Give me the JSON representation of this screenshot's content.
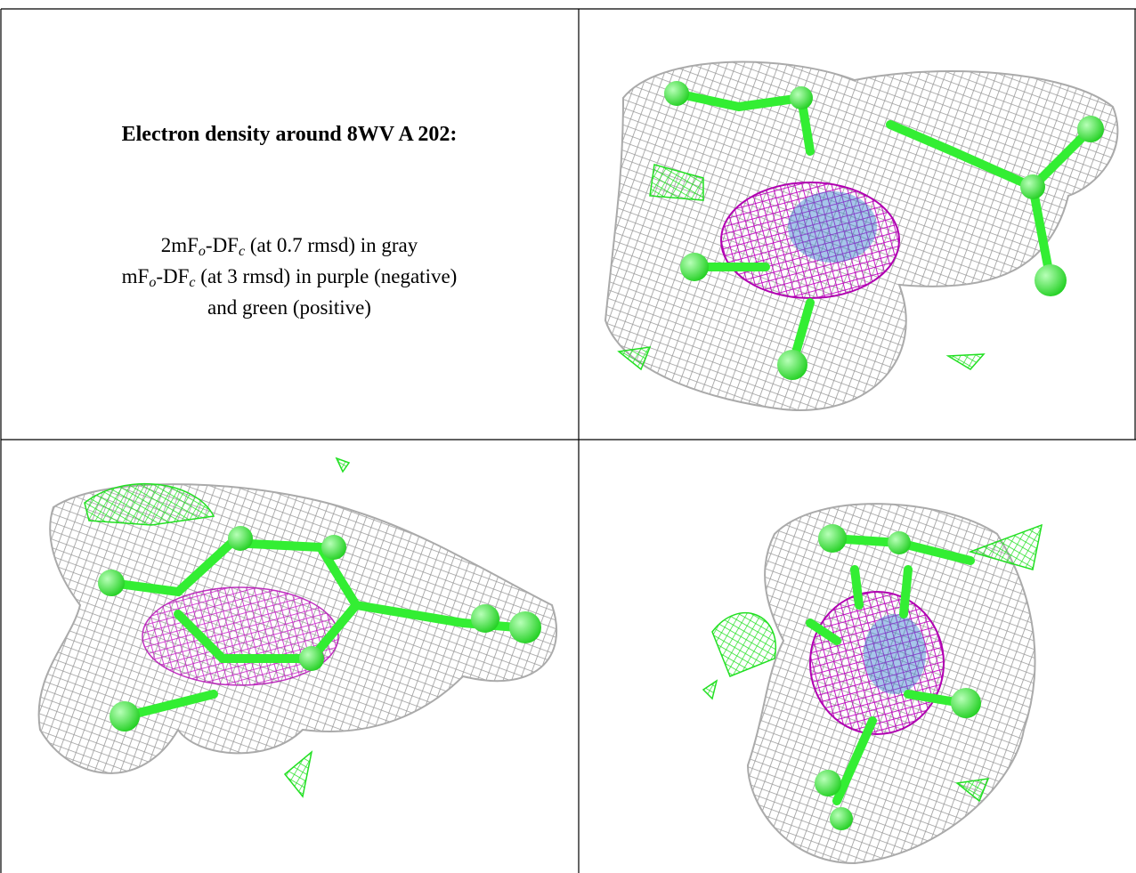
{
  "header": {
    "title": "Electron density around 8WV A 202:"
  },
  "legend": {
    "lines": [
      [
        "2mF",
        "o",
        "-DF",
        "c",
        " (at 0.7 rmsd) in gray"
      ],
      [
        "mF",
        "o",
        "-DF",
        "c",
        " (at 3 rmsd) in purple (negative)"
      ],
      [
        "and green (positive)"
      ]
    ]
  }
}
